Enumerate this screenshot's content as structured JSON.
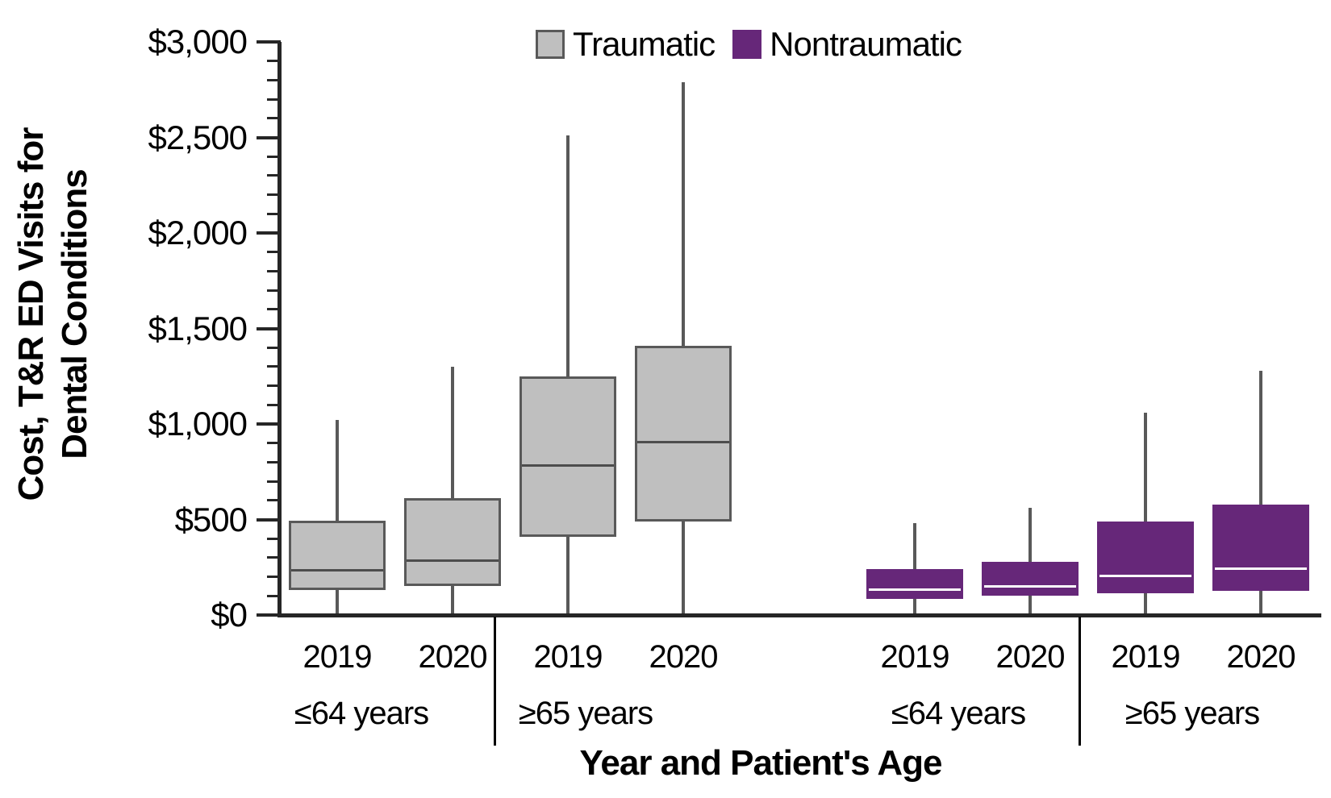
{
  "figure": {
    "x_title": "Year and Patient's Age",
    "y_title_lines": [
      "Cost, T&R ED Visits for",
      "Dental Conditions"
    ]
  },
  "chart_data": {
    "type": "boxplot",
    "title": "",
    "xlabel": "Year and Patient's Age",
    "ylabel": "Cost, T&R ED Visits for Dental Conditions",
    "ylim": [
      0,
      3000
    ],
    "grid": false,
    "legend_position": "top-center",
    "axis_color": "#262626",
    "whisker_color": "#595959",
    "yticks": {
      "major_step": 500,
      "minor_step": 100,
      "max": 3000,
      "labels": [
        "$0",
        "$500",
        "$1,000",
        "$1,500",
        "$2,000",
        "$2,500",
        "$3,000"
      ]
    },
    "legend": [
      {
        "label": "Traumatic",
        "color": "#BFBFBF",
        "border": "#595959",
        "median_color": "#4d4d4d"
      },
      {
        "label": "Nontraumatic",
        "color": "#662779",
        "border": "#662779",
        "median_color": "#ffffff"
      }
    ],
    "groups": [
      {
        "age": "≤64 years",
        "series": "Traumatic",
        "boxes": [
          {
            "year": "2019",
            "low": 10,
            "q1": 130,
            "median": 240,
            "q3": 495,
            "high": 1020
          },
          {
            "year": "2020",
            "low": 10,
            "q1": 150,
            "median": 290,
            "q3": 610,
            "high": 1300
          }
        ]
      },
      {
        "age": "≥65 years",
        "series": "Traumatic",
        "boxes": [
          {
            "year": "2019",
            "low": 10,
            "q1": 410,
            "median": 790,
            "q3": 1250,
            "high": 2510
          },
          {
            "year": "2020",
            "low": 10,
            "q1": 490,
            "median": 910,
            "q3": 1410,
            "high": 2790
          }
        ]
      },
      {
        "age": "≤64 years",
        "series": "Nontraumatic",
        "boxes": [
          {
            "year": "2019",
            "low": 10,
            "q1": 85,
            "median": 140,
            "q3": 240,
            "high": 480
          },
          {
            "year": "2020",
            "low": 10,
            "q1": 100,
            "median": 155,
            "q3": 280,
            "high": 560
          }
        ]
      },
      {
        "age": "≥65 years",
        "series": "Nontraumatic",
        "boxes": [
          {
            "year": "2019",
            "low": 10,
            "q1": 115,
            "median": 210,
            "q3": 490,
            "high": 1060
          },
          {
            "year": "2020",
            "low": 10,
            "q1": 125,
            "median": 250,
            "q3": 580,
            "high": 1280
          }
        ]
      }
    ]
  }
}
